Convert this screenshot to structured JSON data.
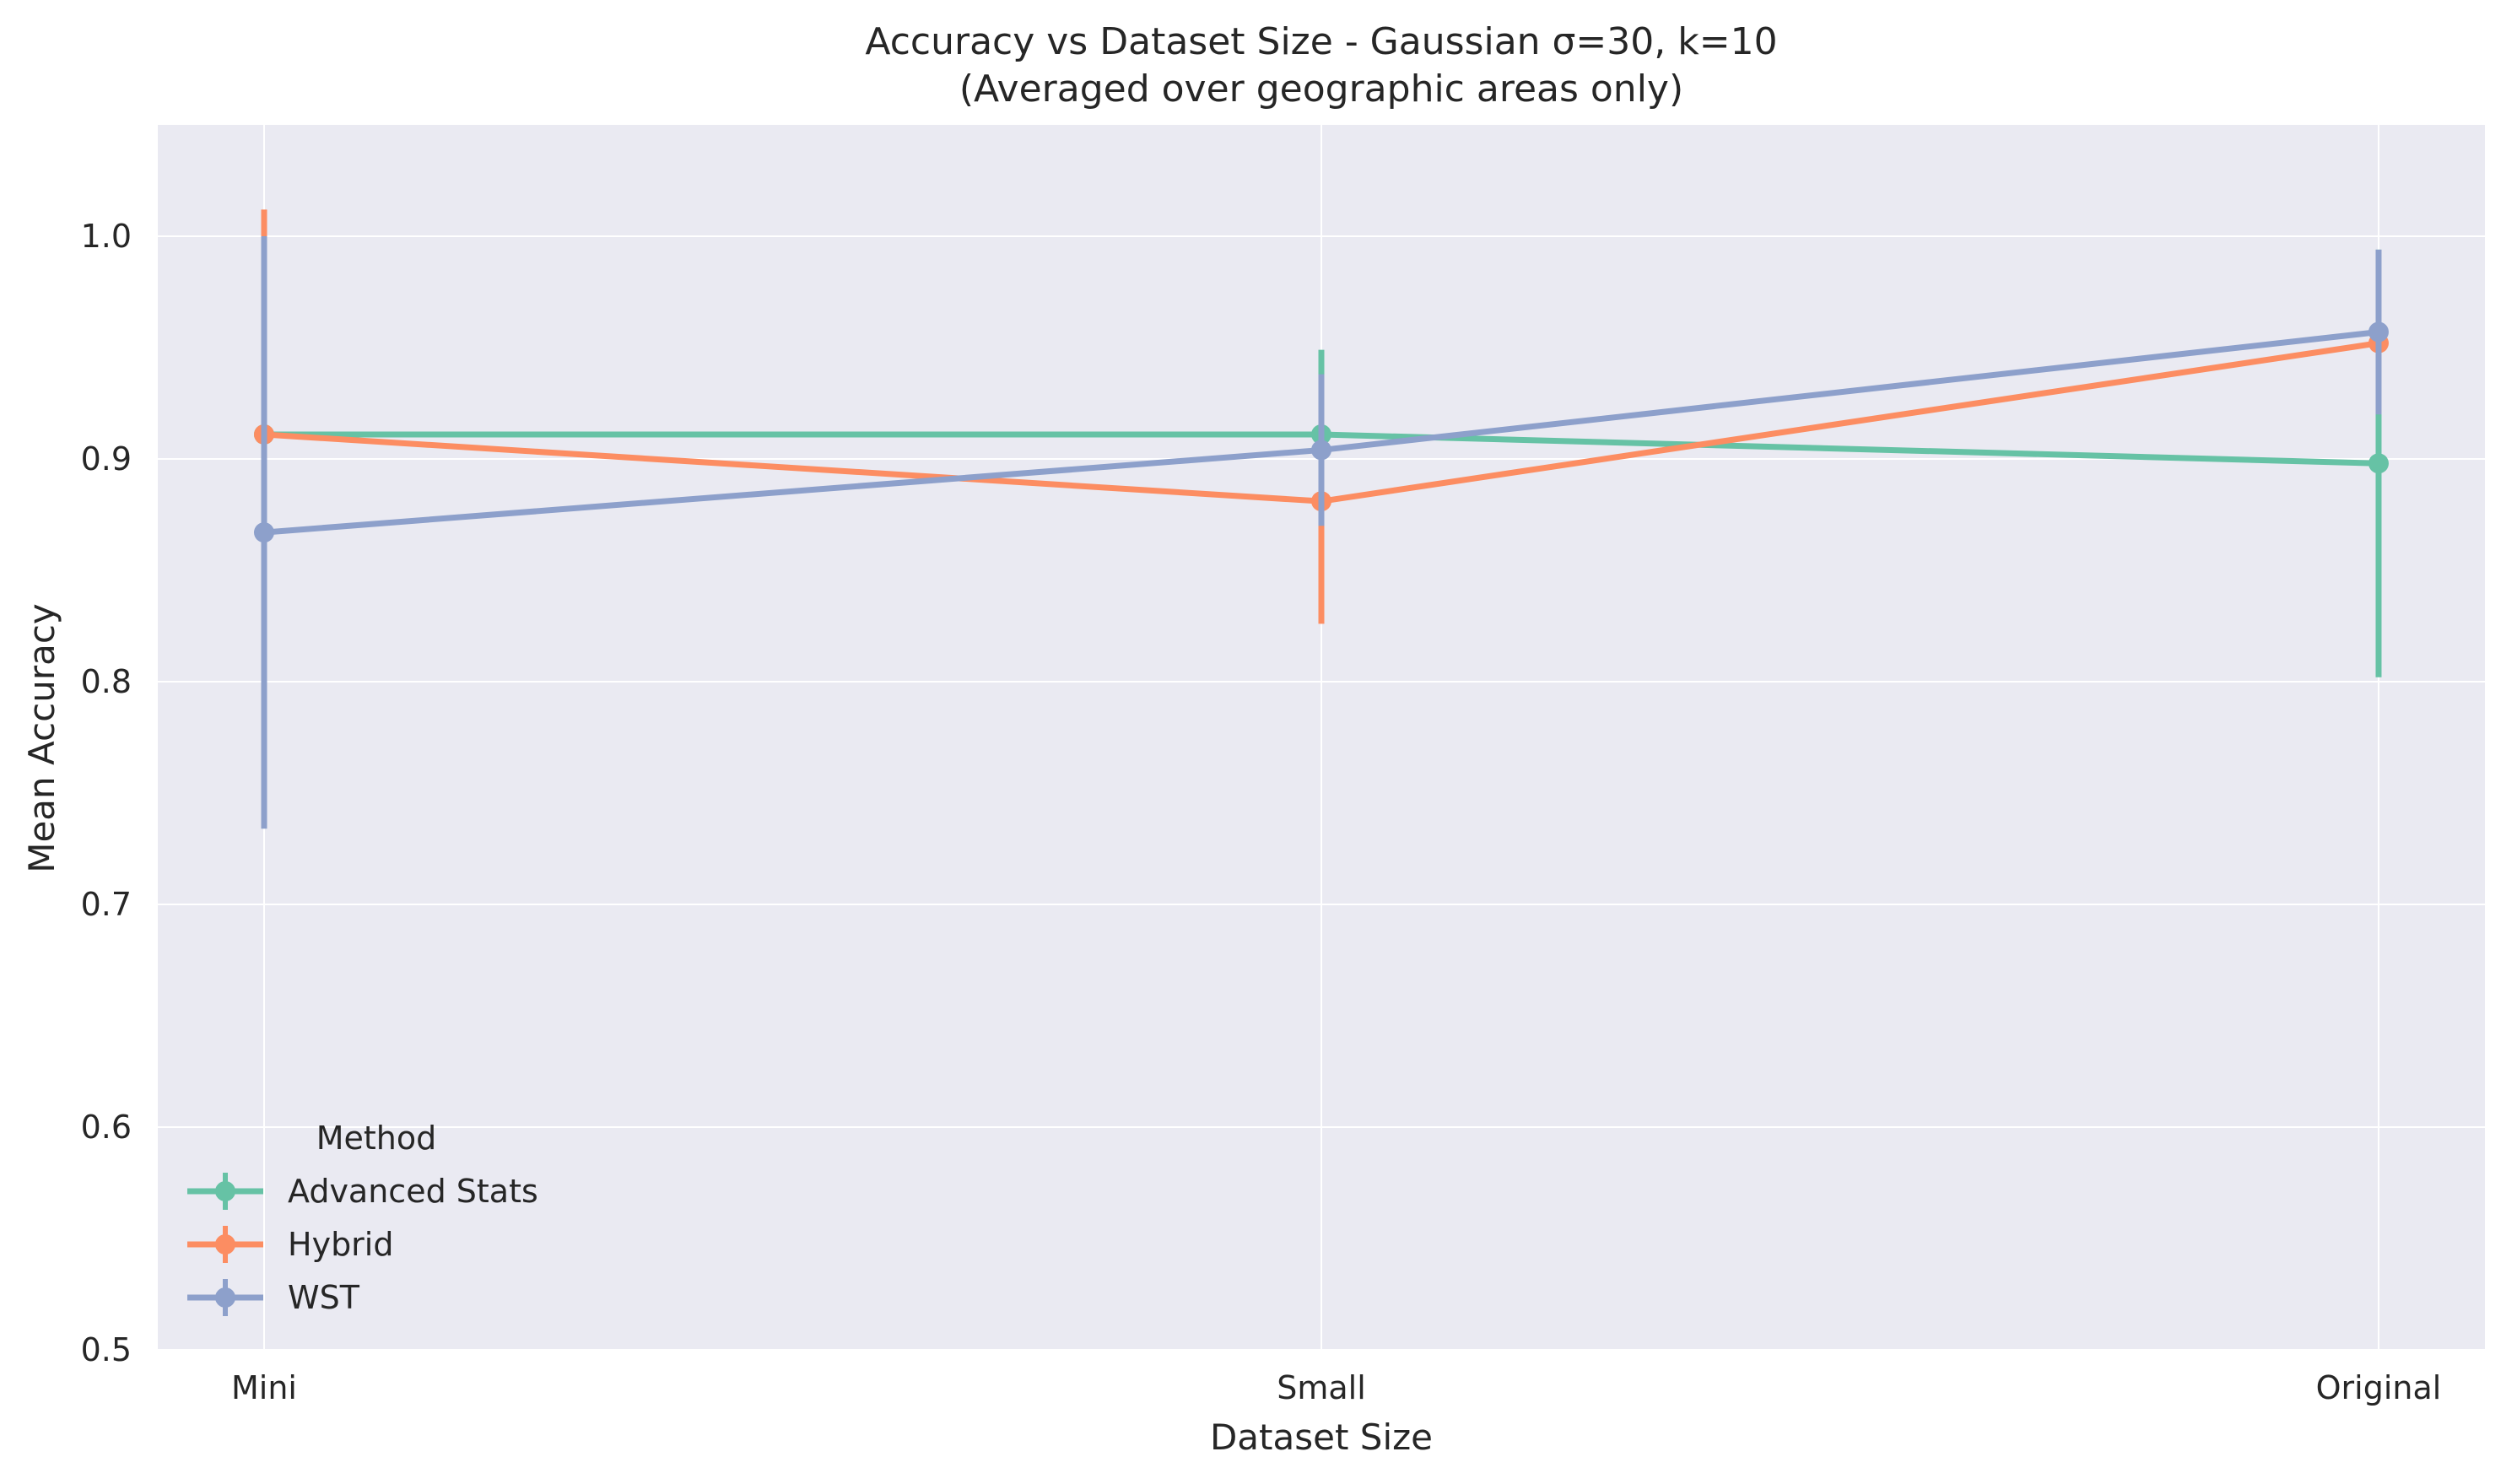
{
  "chart_data": {
    "type": "line",
    "title": "Accuracy vs Dataset Size - Gaussian σ=30, k=10",
    "subtitle": "(Averaged over geographic areas only)",
    "xlabel": "Dataset Size",
    "ylabel": "Mean Accuracy",
    "categories": [
      "Mini",
      "Small",
      "Original"
    ],
    "ylim": [
      0.5,
      1.05
    ],
    "yticks": [
      "0.5",
      "0.6",
      "0.7",
      "0.8",
      "0.9",
      "1.0"
    ],
    "grid": true,
    "legend": {
      "title": "Method",
      "placement": "lower-left"
    },
    "series": [
      {
        "name": "Advanced Stats",
        "color": "#66c2a5",
        "values": [
          0.911,
          0.911,
          0.898
        ],
        "err_low": [
          0.911,
          0.873,
          0.802
        ],
        "err_high": [
          0.911,
          0.949,
          0.994
        ]
      },
      {
        "name": "Hybrid",
        "color": "#fc8d62",
        "values": [
          0.911,
          0.881,
          0.952
        ],
        "err_low": [
          0.81,
          0.826,
          0.927
        ],
        "err_high": [
          1.012,
          0.936,
          0.977
        ]
      },
      {
        "name": "WST",
        "color": "#8da0cb",
        "values": [
          0.867,
          0.904,
          0.957
        ],
        "err_low": [
          0.734,
          0.87,
          0.92
        ],
        "err_high": [
          1.0,
          0.938,
          0.994
        ]
      }
    ]
  }
}
